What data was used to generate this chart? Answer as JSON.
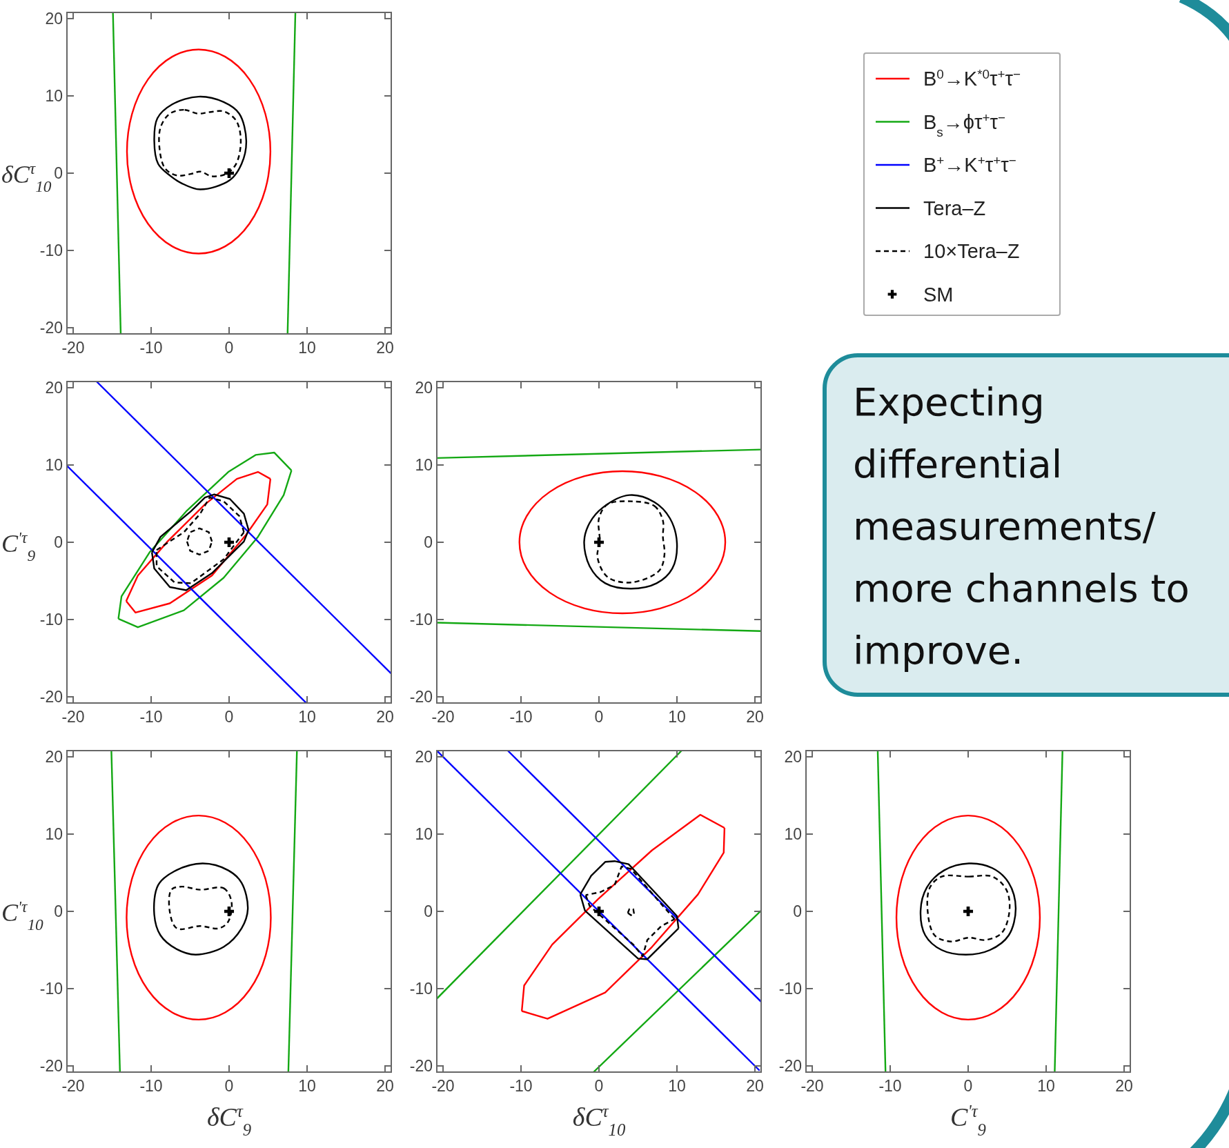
{
  "chart_data": [
    {
      "type": "line",
      "xlim": [
        -20.8,
        20.8
      ],
      "ylim": [
        -20.8,
        20.8
      ],
      "xticks": [
        -20,
        -10,
        0,
        10,
        20
      ],
      "yticks": [
        -20,
        -10,
        0,
        10,
        20
      ],
      "ylabel": "δC$^{τ}$$_{10}$",
      "series": [
        {
          "color": "#13a813",
          "line_style": "solid",
          "x": [
            -14.9,
            -13.9
          ],
          "values": [
            20.8,
            -20.8
          ]
        },
        {
          "color": "#13a813",
          "line_style": "solid",
          "x": [
            8.5,
            7.5
          ],
          "values": [
            20.8,
            -20.8
          ]
        },
        {
          "type": "scatter",
          "marker": "cross",
          "color": "#000000",
          "x": [
            0
          ],
          "values": [
            0
          ]
        }
      ]
    },
    {
      "type": "line",
      "xlim": [
        -20.8,
        20.8
      ],
      "ylim": [
        -20.8,
        20.8
      ],
      "xticks": [
        -20,
        -10,
        0,
        10,
        20
      ],
      "yticks": [
        -20,
        -10,
        0,
        10,
        20
      ],
      "ylabel": "C$^{'τ}$$_{9}$",
      "legend": "top right",
      "series": [
        {
          "name": "B$^{0}$→K$^{*0}$τ$^{+}$τ$^{−}$",
          "color": "#ff0000",
          "line_style": "solid",
          "x": [
            5.3,
            4.9,
            2.2,
            -2.2,
            -7.6,
            -12.0,
            -13.2
          ],
          "values": [
            8.2,
            4.9,
            1.0,
            -4.3,
            -7.9,
            -9.1,
            -7.6
          ]
        },
        {
          "color": "#ff0000",
          "line_style": "solid",
          "x": [
            -13.2,
            -11.7,
            -7.9,
            -3.1,
            1.0,
            3.7,
            5.3
          ],
          "values": [
            -7.6,
            -4.3,
            0.1,
            4.9,
            8.2,
            9.1,
            8.2
          ]
        },
        {
          "name": "B$_{s}$→ϕτ$^{+}$τ$^{−}$",
          "color": "#13a813",
          "line_style": "solid",
          "x": [
            8.0,
            7.0,
            3.7,
            -0.7,
            -5.8,
            -11.7,
            -14.2
          ],
          "values": [
            9.3,
            6.1,
            0.7,
            -4.6,
            -8.8,
            -11.0,
            -9.9
          ]
        },
        {
          "color": "#13a813",
          "line_style": "solid",
          "x": [
            -14.2,
            -13.8,
            -10.2,
            -5.5,
            -0.1,
            3.4,
            5.8,
            8.0
          ],
          "values": [
            -9.9,
            -7.0,
            -1.3,
            4.0,
            9.1,
            11.3,
            11.6,
            9.3
          ]
        },
        {
          "name": "B$^{+}$→K$^{+}$τ$^{+}$τ$^{−}$",
          "color": "#0000ff",
          "line_style": "solid",
          "x": [
            -17.0,
            20.8
          ],
          "values": [
            20.8,
            -17.0
          ]
        },
        {
          "color": "#0000ff",
          "line_style": "solid",
          "x": [
            -20.8,
            9.9
          ],
          "values": [
            9.9,
            -20.8
          ]
        },
        {
          "name": "Tera–Z",
          "color": "#000000",
          "line_style": "solid",
          "x": [
            2.5,
            1.9,
            -2.2,
            -5.5,
            -7.6,
            -9.6,
            -9.9
          ],
          "values": [
            1.6,
            0.1,
            -4.0,
            -6.2,
            -5.8,
            -3.4,
            -1.3
          ]
        },
        {
          "color": "#000000",
          "line_style": "solid",
          "x": [
            -9.9,
            -8.8,
            -4.9,
            -3.1,
            -1.9,
            0.1,
            1.9,
            2.5
          ],
          "values": [
            -1.3,
            0.7,
            4.0,
            5.8,
            6.2,
            5.6,
            3.7,
            1.6
          ]
        },
        {
          "name": "10×Tera–Z",
          "color": "#000000",
          "line_style": "dashed",
          "x": [
            1.9,
            -0.7,
            -4.9,
            -7.0,
            -9.3,
            -9.3
          ],
          "values": [
            1.3,
            -2.2,
            -5.3,
            -5.2,
            -3.1,
            -1.0
          ]
        },
        {
          "color": "#000000",
          "line_style": "dashed",
          "x": [
            -9.3,
            -5.8,
            -3.7,
            -2.5,
            -0.7,
            1.3,
            1.9
          ],
          "values": [
            -1.0,
            1.3,
            3.7,
            5.8,
            5.3,
            3.4,
            1.3
          ]
        },
        {
          "color": "#000000",
          "line_style": "dashed",
          "x": [
            -2.2,
            -2.6,
            -3.8,
            -5.0,
            -5.4
          ],
          "values": [
            0.1,
            1.3,
            1.8,
            1.3,
            0.1
          ]
        },
        {
          "color": "#000000",
          "line_style": "dashed",
          "x": [
            -5.4,
            -5.0,
            -3.8,
            -2.6,
            -2.2
          ],
          "values": [
            0.1,
            -1.1,
            -1.6,
            -1.1,
            0.1
          ]
        },
        {
          "name": "SM",
          "type": "scatter",
          "marker": "cross",
          "color": "#000000",
          "x": [
            0
          ],
          "values": [
            0
          ]
        }
      ]
    },
    {
      "type": "line",
      "xlim": [
        -20.8,
        20.8
      ],
      "ylim": [
        -20.8,
        20.8
      ],
      "xticks": [
        -20,
        -10,
        0,
        10,
        20
      ],
      "yticks": [
        -20,
        -10,
        0,
        10,
        20
      ],
      "series": [
        {
          "color": "#13a813",
          "line_style": "solid",
          "x": [
            -20.8,
            20.8
          ],
          "values": [
            10.9,
            12.0
          ]
        },
        {
          "color": "#13a813",
          "line_style": "solid",
          "x": [
            -20.8,
            20.8
          ],
          "values": [
            -10.4,
            -11.5
          ]
        },
        {
          "type": "scatter",
          "marker": "cross",
          "color": "#000000",
          "x": [
            0
          ],
          "values": [
            0
          ]
        }
      ]
    },
    {
      "type": "line",
      "xlim": [
        -20.8,
        20.8
      ],
      "ylim": [
        -20.8,
        20.8
      ],
      "xticks": [
        -20,
        -10,
        0,
        10,
        20
      ],
      "yticks": [
        -20,
        -10,
        0,
        10,
        20
      ],
      "xlabel": "δC$^{τ}$$_{9}$",
      "ylabel": "C$^{'τ}$$_{10}$",
      "series": [
        {
          "color": "#13a813",
          "line_style": "solid",
          "x": [
            -15.1,
            -14.0
          ],
          "values": [
            20.8,
            -20.8
          ]
        },
        {
          "color": "#13a813",
          "line_style": "solid",
          "x": [
            8.7,
            7.6
          ],
          "values": [
            20.8,
            -20.8
          ]
        },
        {
          "type": "scatter",
          "marker": "cross",
          "color": "#000000",
          "x": [
            0
          ],
          "values": [
            0
          ]
        }
      ]
    },
    {
      "type": "line",
      "xlim": [
        -20.8,
        20.8
      ],
      "ylim": [
        -20.8,
        20.8
      ],
      "xticks": [
        -20,
        -10,
        0,
        10,
        20
      ],
      "yticks": [
        -20,
        -10,
        0,
        10,
        20
      ],
      "xlabel": "δC$^{τ}$$_{10}$",
      "series": [
        {
          "color": "#13a813",
          "line_style": "solid",
          "x": [
            -20.8,
            10.6
          ],
          "values": [
            -11.3,
            20.8
          ]
        },
        {
          "color": "#13a813",
          "line_style": "solid",
          "x": [
            -0.7,
            20.8
          ],
          "values": [
            -20.8,
            0.1
          ]
        },
        {
          "color": "#ff0000",
          "line_style": "solid",
          "x": [
            16.1,
            16.0,
            12.7,
            6.8,
            0.8,
            -6.6,
            -9.9
          ],
          "values": [
            10.8,
            7.6,
            2.2,
            -4.6,
            -10.5,
            -13.9,
            -12.9
          ]
        },
        {
          "color": "#ff0000",
          "line_style": "solid",
          "x": [
            -9.9,
            -9.6,
            -6.0,
            -0.1,
            6.8,
            13.0,
            16.1
          ],
          "values": [
            -12.9,
            -9.6,
            -4.3,
            1.6,
            7.9,
            12.5,
            10.8
          ]
        },
        {
          "color": "#0000ff",
          "line_style": "solid",
          "x": [
            -20.8,
            20.6
          ],
          "values": [
            20.8,
            -20.6
          ]
        },
        {
          "color": "#0000ff",
          "line_style": "solid",
          "x": [
            -11.7,
            20.8
          ],
          "values": [
            20.8,
            -11.7
          ]
        },
        {
          "color": "#000000",
          "line_style": "solid",
          "x": [
            10.2,
            6.2,
            5.0,
            -1.8,
            -2.4
          ],
          "values": [
            -2.2,
            -6.2,
            -6.1,
            0.1,
            2.2
          ]
        },
        {
          "color": "#000000",
          "line_style": "solid",
          "x": [
            -2.4,
            -1.0,
            0.8,
            2.0,
            3.8,
            10.0,
            10.2
          ],
          "values": [
            2.2,
            4.6,
            6.4,
            6.5,
            6.1,
            -0.6,
            -2.2
          ]
        },
        {
          "color": "#000000",
          "line_style": "dashed",
          "x": [
            -1.7,
            -1.2,
            4.4,
            5.6,
            6.2,
            8.0,
            9.7
          ],
          "values": [
            2.1,
            0.7,
            -4.3,
            -5.8,
            -3.7,
            -1.9,
            -1.0
          ]
        },
        {
          "color": "#000000",
          "line_style": "dashed",
          "x": [
            9.7,
            8.2,
            4.1,
            2.9,
            2.0,
            0.2,
            -1.7
          ],
          "values": [
            -1.0,
            0.7,
            5.5,
            5.8,
            3.4,
            2.5,
            2.1
          ]
        },
        {
          "color": "#000000",
          "line_style": "dashed",
          "x": [
            4.5,
            4.4,
            3.9,
            3.7
          ],
          "values": [
            -0.3,
            0.3,
            0.3,
            -0.2
          ]
        },
        {
          "color": "#000000",
          "line_style": "dashed",
          "x": [
            3.7,
            4.1,
            4.5
          ],
          "values": [
            -0.2,
            -0.5,
            -0.3
          ]
        },
        {
          "type": "scatter",
          "marker": "cross",
          "color": "#000000",
          "x": [
            0
          ],
          "values": [
            0
          ]
        }
      ]
    },
    {
      "type": "line",
      "xlim": [
        -20.8,
        20.8
      ],
      "ylim": [
        -20.8,
        20.8
      ],
      "xticks": [
        -20,
        -10,
        0,
        10,
        20
      ],
      "yticks": [
        -20,
        -10,
        0,
        10,
        20
      ],
      "xlabel": "C$^{'τ}$$_{9}$",
      "series": [
        {
          "color": "#13a813",
          "line_style": "solid",
          "x": [
            -11.6,
            -10.6
          ],
          "values": [
            20.8,
            -20.8
          ]
        },
        {
          "color": "#13a813",
          "line_style": "solid",
          "x": [
            12.1,
            11.1
          ],
          "values": [
            20.8,
            -20.8
          ]
        },
        {
          "type": "scatter",
          "marker": "cross",
          "color": "#000000",
          "x": [
            0
          ],
          "values": [
            0
          ]
        }
      ]
    },
    {
      "type": "other",
      "annotations": [
        "Expecting differential measurements/ more channels to improve."
      ]
    }
  ]
}
